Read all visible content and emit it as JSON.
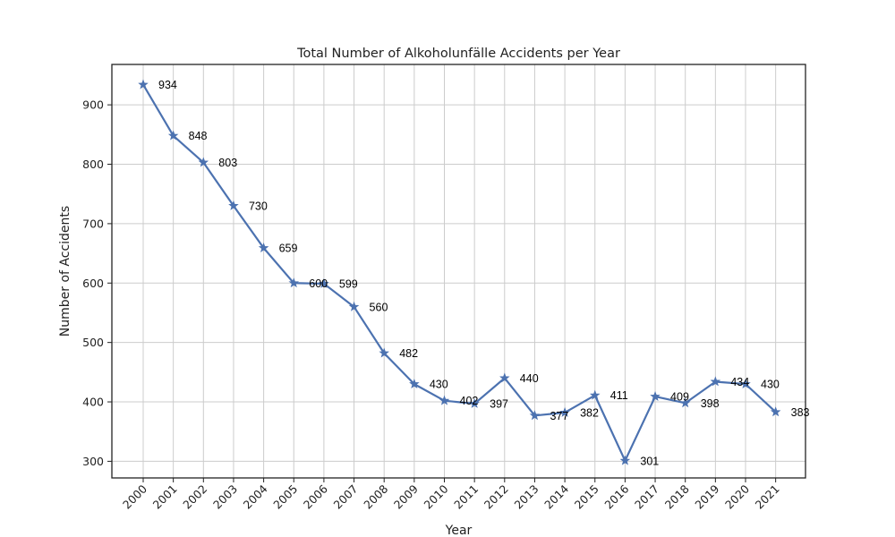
{
  "chart_data": {
    "type": "line",
    "title": "Total Number of Alkoholunfälle Accidents per Year",
    "xlabel": "Year",
    "ylabel": "Number of Accidents",
    "categories": [
      "2000",
      "2001",
      "2002",
      "2003",
      "2004",
      "2005",
      "2006",
      "2007",
      "2008",
      "2009",
      "2010",
      "2011",
      "2012",
      "2013",
      "2014",
      "2015",
      "2016",
      "2017",
      "2018",
      "2019",
      "2020",
      "2021"
    ],
    "series": [
      {
        "values": [
          934,
          848,
          803,
          730,
          659,
          600,
          599,
          560,
          482,
          430,
          402,
          397,
          440,
          377,
          382,
          411,
          301,
          409,
          398,
          434,
          430,
          383
        ],
        "color": "#4c72b0",
        "marker": "star"
      }
    ],
    "ylim": [
      272,
      968
    ],
    "yticks": [
      300,
      400,
      500,
      600,
      700,
      800,
      900
    ],
    "grid": true,
    "legend": false
  }
}
